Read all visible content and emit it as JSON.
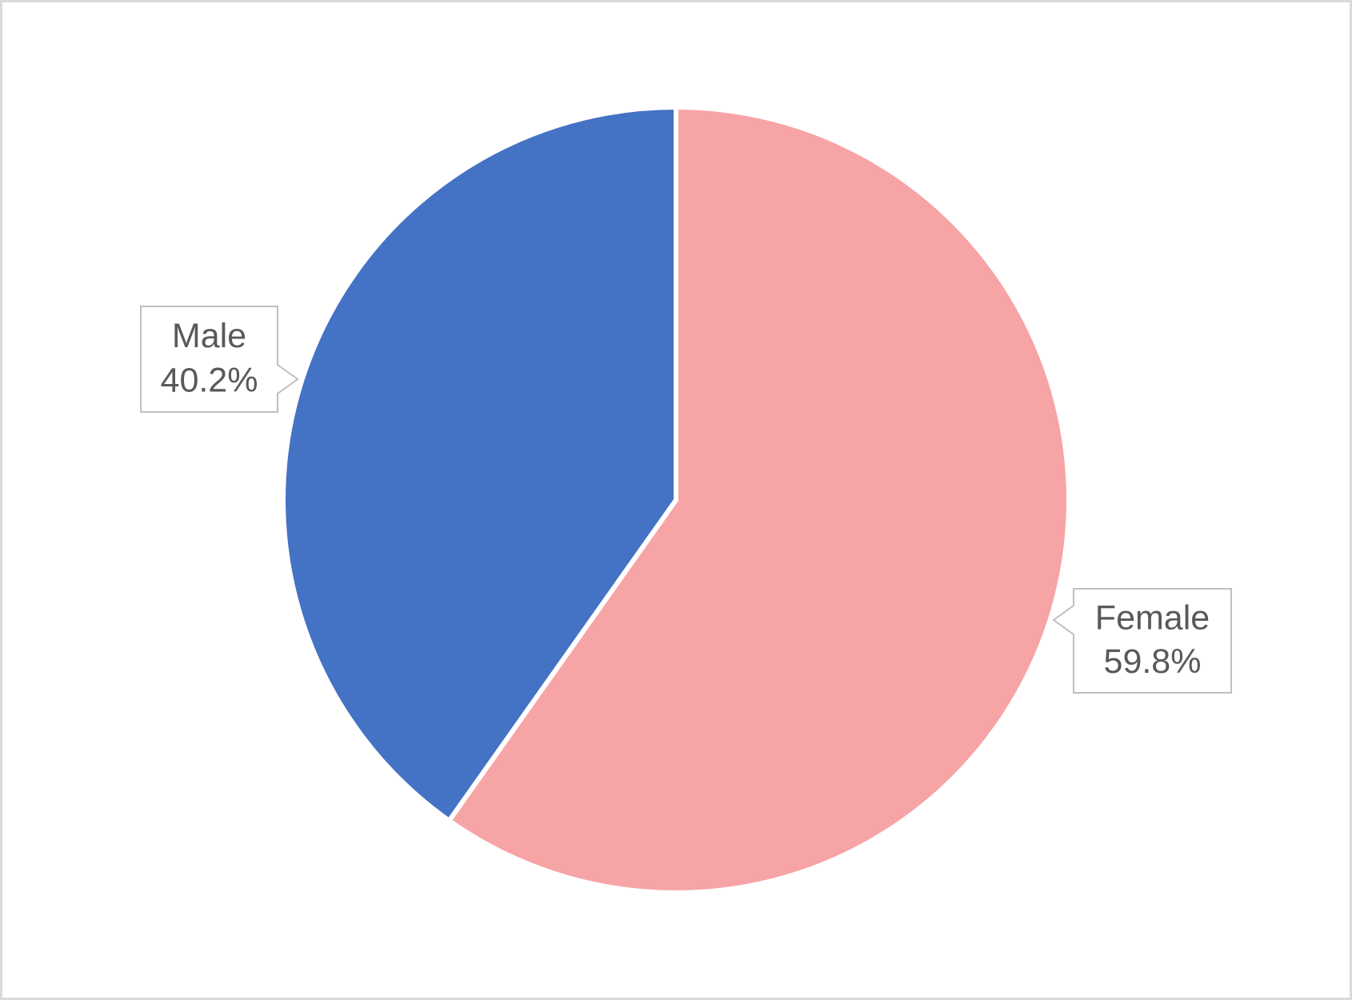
{
  "chart_data": {
    "type": "pie",
    "categories": [
      "Female",
      "Male"
    ],
    "values": [
      59.8,
      40.2
    ],
    "value_labels": [
      "59.8%",
      "40.2%"
    ],
    "colors": [
      "#f7a4a7",
      "#4472c4"
    ]
  }
}
